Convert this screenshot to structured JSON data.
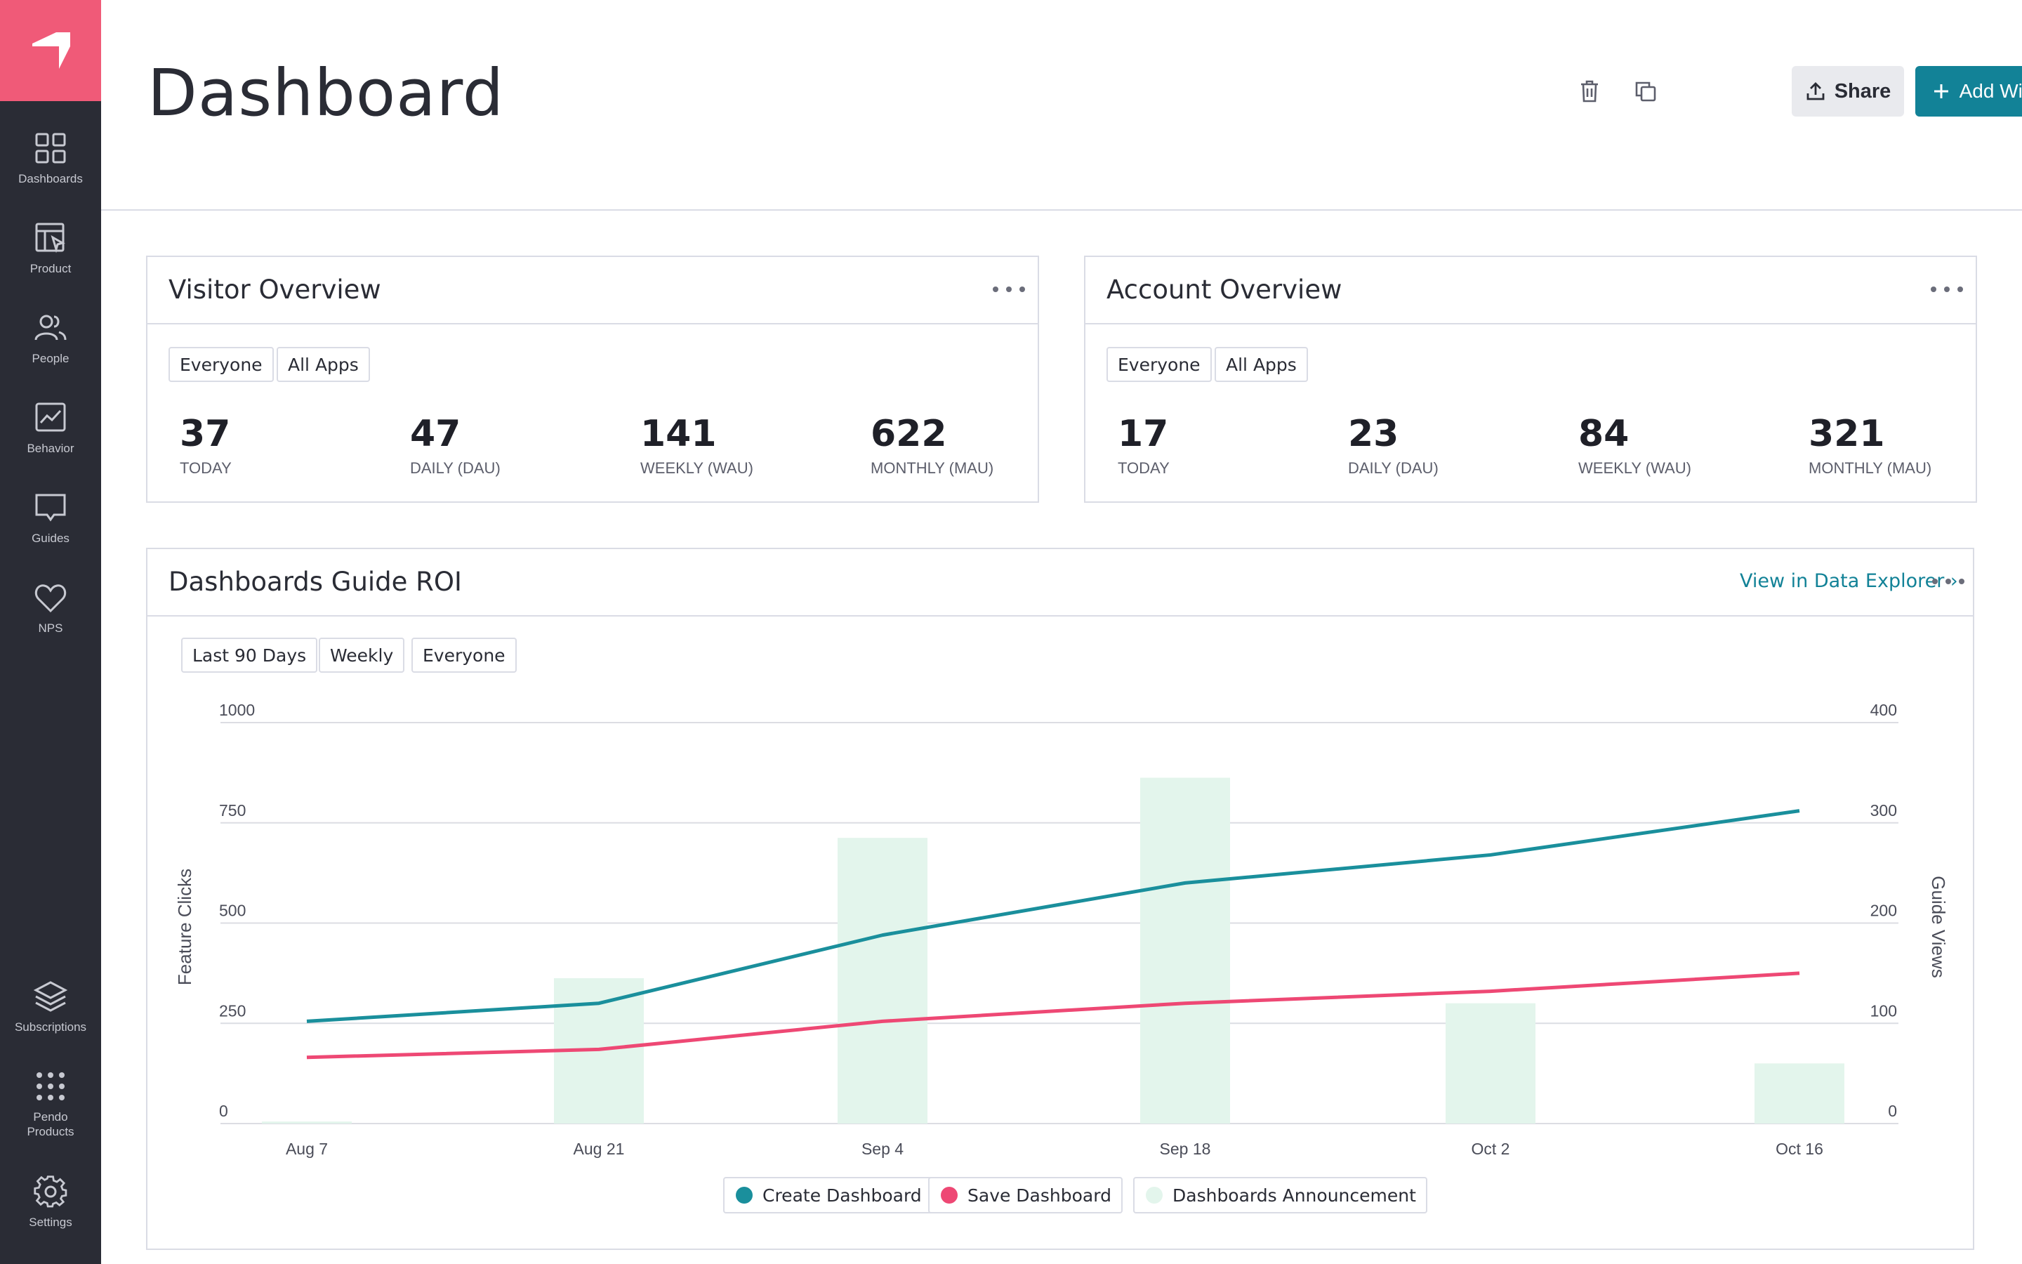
{
  "sidebar": {
    "items": [
      {
        "label": "Dashboards",
        "icon": "grid-icon"
      },
      {
        "label": "Product",
        "icon": "product-icon"
      },
      {
        "label": "People",
        "icon": "people-icon"
      },
      {
        "label": "Behavior",
        "icon": "behavior-icon"
      },
      {
        "label": "Guides",
        "icon": "guides-icon"
      },
      {
        "label": "NPS",
        "icon": "heart-icon"
      }
    ],
    "bottom_items": [
      {
        "label": "Subscriptions",
        "icon": "layers-icon"
      },
      {
        "label": "Pendo Products",
        "icon": "apps-grid-icon"
      },
      {
        "label": "Settings",
        "icon": "gear-icon"
      }
    ]
  },
  "header": {
    "title": "Dashboard",
    "share_label": "Share",
    "add_widget_label": "Add Widget"
  },
  "visitor_overview": {
    "title": "Visitor Overview",
    "filters": [
      "Everyone",
      "All Apps"
    ],
    "metrics": [
      {
        "value": "37",
        "label": "TODAY"
      },
      {
        "value": "47",
        "label": "DAILY (DAU)"
      },
      {
        "value": "141",
        "label": "WEEKLY (WAU)"
      },
      {
        "value": "622",
        "label": "MONTHLY (MAU)"
      }
    ]
  },
  "account_overview": {
    "title": "Account Overview",
    "filters": [
      "Everyone",
      "All Apps"
    ],
    "metrics": [
      {
        "value": "17",
        "label": "TODAY"
      },
      {
        "value": "23",
        "label": "DAILY (DAU)"
      },
      {
        "value": "84",
        "label": "WEEKLY (WAU)"
      },
      {
        "value": "321",
        "label": "MONTHLY (MAU)"
      }
    ]
  },
  "roi": {
    "title": "Dashboards Guide ROI",
    "link_label": "View in Data Explorer ›",
    "filters": [
      "Last 90 Days",
      "Weekly",
      "Everyone"
    ]
  },
  "colors": {
    "brand_pink": "#f05a78",
    "teal": "#1a8f9c",
    "red": "#ee4874",
    "bar_green": "#e3f5ec",
    "sidebar_bg": "#2a2c35",
    "primary_button": "#128297"
  },
  "chart_data": {
    "type": "line",
    "categories": [
      "Aug 7",
      "Aug 21",
      "Sep 4",
      "Sep 18",
      "Oct 2",
      "Oct 16"
    ],
    "ylabel": "Feature Clicks",
    "y2label": "Guide Views",
    "ylim": [
      0,
      1000
    ],
    "y2lim": [
      0,
      400
    ],
    "yticks": [
      "0",
      "250",
      "500",
      "750",
      "1000"
    ],
    "y2ticks": [
      "0",
      "100",
      "200",
      "300",
      "400"
    ],
    "grid": true,
    "legend_position": "bottom",
    "series": [
      {
        "name": "Create Dashboard",
        "type": "line",
        "axis": "left",
        "color": "#1a8f9c",
        "values": [
          255,
          300,
          470,
          600,
          670,
          780
        ]
      },
      {
        "name": "Save Dashboard",
        "type": "line",
        "axis": "left",
        "color": "#ee4874",
        "values": [
          165,
          185,
          255,
          300,
          330,
          375
        ]
      },
      {
        "name": "Dashboards Announcement",
        "type": "bar",
        "axis": "right",
        "color": "#e3f5ec",
        "values": [
          2,
          145,
          285,
          345,
          120,
          60
        ]
      }
    ]
  }
}
